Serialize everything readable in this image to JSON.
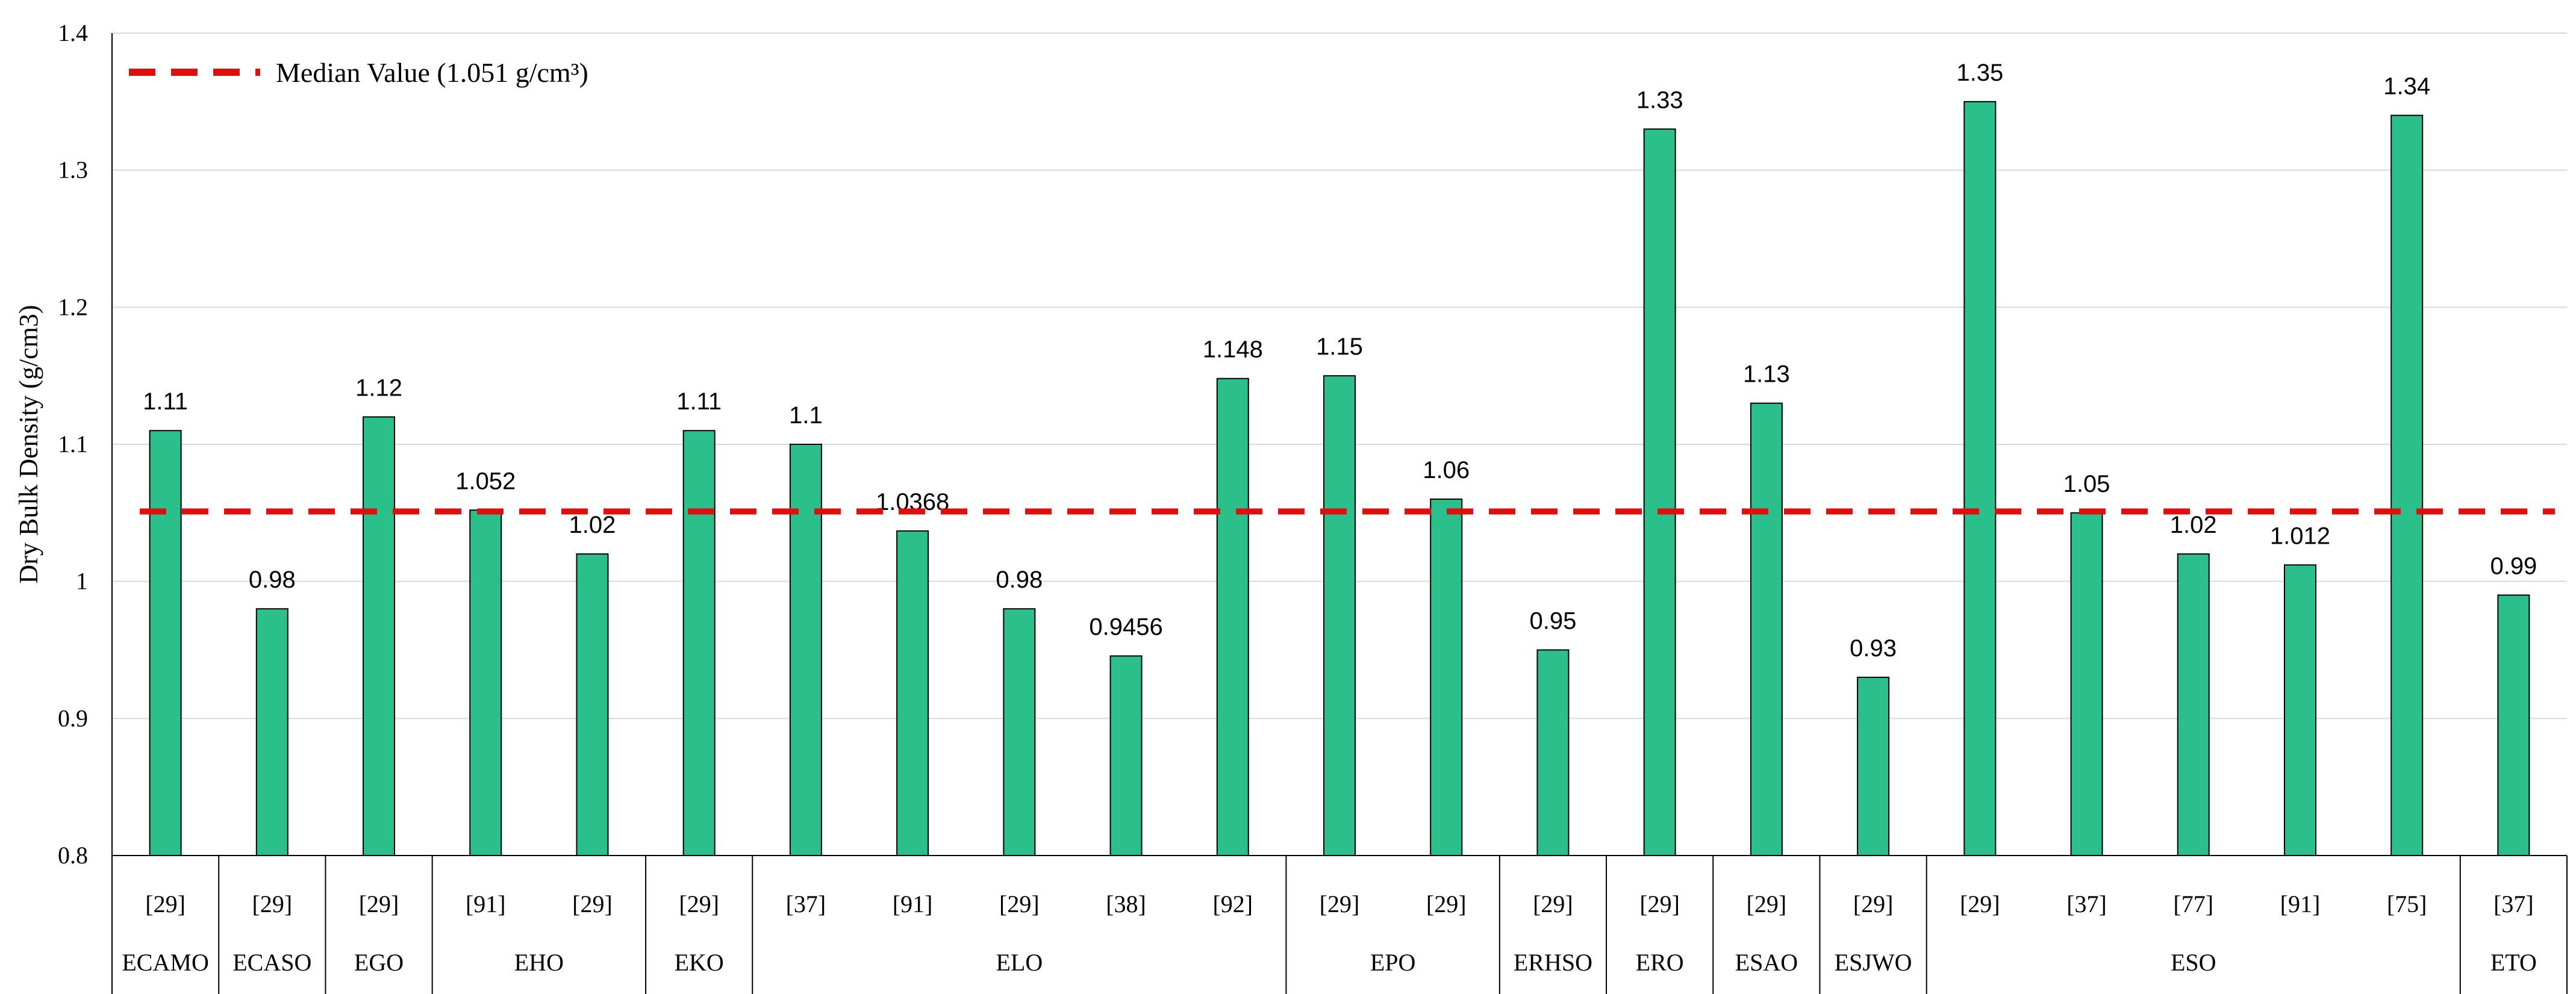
{
  "chart_data": {
    "type": "bar",
    "ylabel": "Dry Bulk Density (g/cm3)",
    "ylim": [
      0.8,
      1.4
    ],
    "yticks": [
      "0.8",
      "0.9",
      "1",
      "1.1",
      "1.2",
      "1.3",
      "1.4"
    ],
    "bar_color": "#2bbf8b",
    "median_color": "#dd1010",
    "median": {
      "value": 1.051,
      "label": "Median Value (1.051 g/cm³)"
    },
    "legend_position": "top-left",
    "groups": [
      {
        "name": "ECAMO",
        "size": 1
      },
      {
        "name": "ECASO",
        "size": 1
      },
      {
        "name": "EGO",
        "size": 1
      },
      {
        "name": "EHO",
        "size": 2
      },
      {
        "name": "EKO",
        "size": 1
      },
      {
        "name": "ELO",
        "size": 5
      },
      {
        "name": "EPO",
        "size": 2
      },
      {
        "name": "ERHSO",
        "size": 1
      },
      {
        "name": "ERO",
        "size": 1
      },
      {
        "name": "ESAO",
        "size": 1
      },
      {
        "name": "ESJWO",
        "size": 1
      },
      {
        "name": "ESO",
        "size": 5
      },
      {
        "name": "ETO",
        "size": 1
      }
    ],
    "categories": [
      "[29]",
      "[29]",
      "[29]",
      "[91]",
      "[29]",
      "[29]",
      "[37]",
      "[91]",
      "[29]",
      "[38]",
      "[92]",
      "[29]",
      "[29]",
      "[29]",
      "[29]",
      "[29]",
      "[29]",
      "[29]",
      "[37]",
      "[77]",
      "[91]",
      "[75]",
      "[37]"
    ],
    "values": [
      1.11,
      0.98,
      1.12,
      1.052,
      1.02,
      1.11,
      1.1,
      1.0368,
      0.98,
      0.9456,
      1.148,
      1.15,
      1.06,
      0.95,
      1.33,
      1.13,
      0.93,
      1.35,
      1.05,
      1.02,
      1.012,
      1.34,
      0.99
    ],
    "data_labels": [
      "1.11",
      "0.98",
      "1.12",
      "1.052",
      "1.02",
      "1.11",
      "1.1",
      "1.0368",
      "0.98",
      "0.9456",
      "1.148",
      "1.15",
      "1.06",
      "0.95",
      "1.33",
      "1.13",
      "0.93",
      "1.35",
      "1.05",
      "1.02",
      "1.012",
      "1.34",
      "0.99"
    ]
  }
}
